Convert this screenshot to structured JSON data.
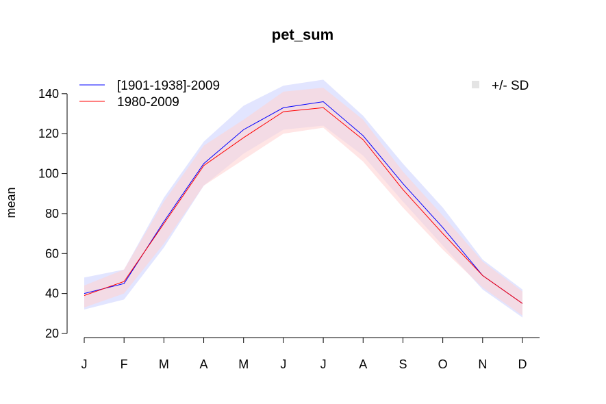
{
  "chart_data": {
    "type": "line",
    "title": "pet_sum",
    "xlabel": "",
    "ylabel": "mean",
    "categories": [
      "J",
      "F",
      "M",
      "A",
      "M",
      "J",
      "J",
      "A",
      "S",
      "O",
      "N",
      "D"
    ],
    "ylim": [
      18,
      154
    ],
    "yticks": [
      20,
      40,
      60,
      80,
      100,
      120,
      140
    ],
    "grid": false,
    "legend": {
      "placement": "top-left",
      "entries": [
        "[1901-1938]-2009",
        "1980-2009"
      ],
      "band_label": "+/- SD",
      "band_label_placement": "top-right"
    },
    "series": [
      {
        "name": "[1901-1938]-2009",
        "color": "#0000ff",
        "band_color": "#d8dcff",
        "values": [
          40,
          45,
          76,
          105,
          122,
          133,
          136,
          119,
          95,
          73,
          49,
          35
        ],
        "sd_lower": [
          32,
          37,
          63,
          94,
          110,
          122,
          124,
          109,
          86,
          64,
          42,
          28
        ],
        "sd_upper": [
          48,
          52,
          88,
          116,
          134,
          144,
          147,
          129,
          105,
          83,
          57,
          42
        ]
      },
      {
        "name": "1980-2009",
        "color": "#ff0000",
        "band_color": "#ffd4d4",
        "values": [
          39,
          46,
          75,
          104,
          118,
          131,
          133,
          117,
          92,
          70,
          49,
          35
        ],
        "sd_lower": [
          33,
          40,
          65,
          94,
          107,
          120,
          123,
          106,
          83,
          62,
          43,
          29
        ],
        "sd_upper": [
          44,
          52,
          86,
          114,
          127,
          141,
          143,
          127,
          101,
          79,
          56,
          41
        ]
      }
    ]
  }
}
